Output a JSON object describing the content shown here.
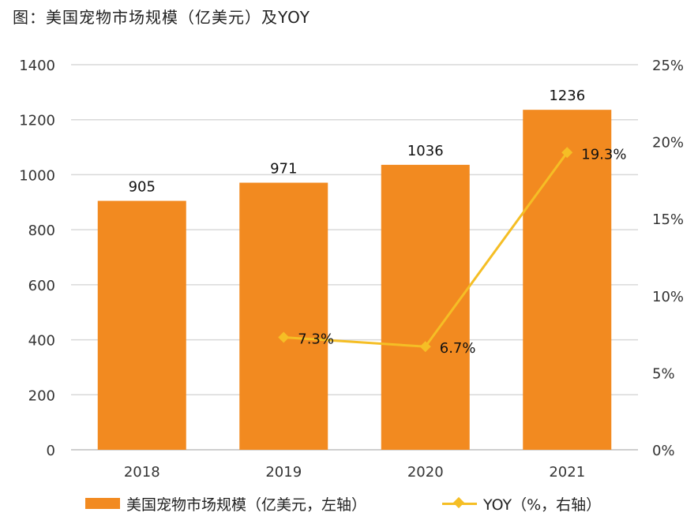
{
  "title": "图：美国宠物市场规模（亿美元）及YOY",
  "colors": {
    "bar": "#F28A20",
    "line": "#F5BE25",
    "grid": "#D9D9D9",
    "text": "#222222"
  },
  "legend": {
    "bar_label": "美国宠物市场规模（亿美元，左轴）",
    "line_label": "YOY（%，右轴）"
  },
  "chart_data": {
    "type": "bar",
    "categories": [
      "2018",
      "2019",
      "2020",
      "2021"
    ],
    "series": [
      {
        "name": "美国宠物市场规模（亿美元，左轴）",
        "type": "bar",
        "axis": "left",
        "values": [
          905,
          971,
          1036,
          1236
        ],
        "labels": [
          "905",
          "971",
          "1036",
          "1236"
        ]
      },
      {
        "name": "YOY（%，右轴）",
        "type": "line",
        "axis": "right",
        "values": [
          null,
          7.3,
          6.7,
          19.3
        ],
        "labels": [
          "",
          "7.3%",
          "6.7%",
          "19.3%"
        ]
      }
    ],
    "y_left": {
      "min": 0,
      "max": 1400,
      "ticks": [
        "0",
        "200",
        "400",
        "600",
        "800",
        "1000",
        "1200",
        "1400"
      ]
    },
    "y_right": {
      "min": 0,
      "max": 25,
      "ticks": [
        "0%",
        "5%",
        "10%",
        "15%",
        "20%",
        "25%"
      ]
    },
    "grid": true,
    "legend_position": "bottom"
  }
}
